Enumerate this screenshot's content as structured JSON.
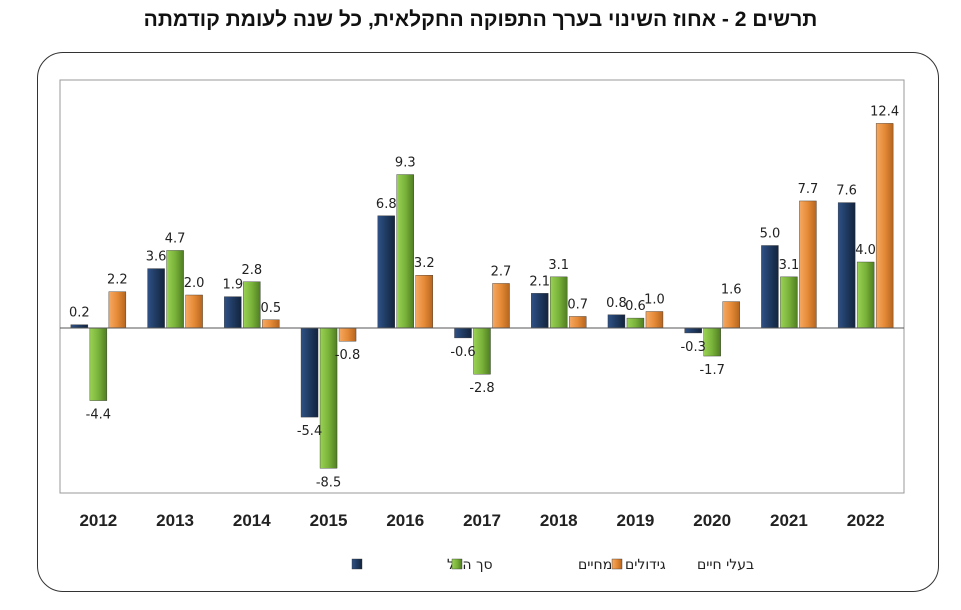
{
  "title": "תרשים 2 - אחוז השינוי בערך התפוקה החקלאית, כל שנה לעומת קודמתה",
  "colors": {
    "total": "#1F3A60",
    "plants": "#7AB33A",
    "livestock": "#E58A36"
  },
  "chart_data": {
    "type": "bar",
    "title": "תרשים 2 - אחוז השינוי בערך התפוקה החקלאית, כל שנה לעומת קודמתה",
    "xlabel": "",
    "ylabel": "",
    "ylim": [
      -9,
      13
    ],
    "categories": [
      "2012",
      "2013",
      "2014",
      "2015",
      "2016",
      "2017",
      "2018",
      "2019",
      "2020",
      "2021",
      "2022"
    ],
    "series": [
      {
        "name": "סך הכל",
        "key": "total",
        "values": [
          0.2,
          3.6,
          1.9,
          -5.4,
          6.8,
          -0.6,
          2.1,
          0.8,
          -0.3,
          5.0,
          7.6
        ]
      },
      {
        "name": "גידולים צמחיים",
        "key": "plants",
        "values": [
          -4.4,
          4.7,
          2.8,
          -8.5,
          9.3,
          -2.8,
          3.1,
          0.6,
          -1.7,
          3.1,
          4.0
        ]
      },
      {
        "name": "בעלי חיים",
        "key": "livestock",
        "values": [
          2.2,
          2.0,
          0.5,
          -0.8,
          3.2,
          2.7,
          0.7,
          1.0,
          1.6,
          7.7,
          12.4
        ]
      }
    ],
    "legend_position": "bottom"
  }
}
